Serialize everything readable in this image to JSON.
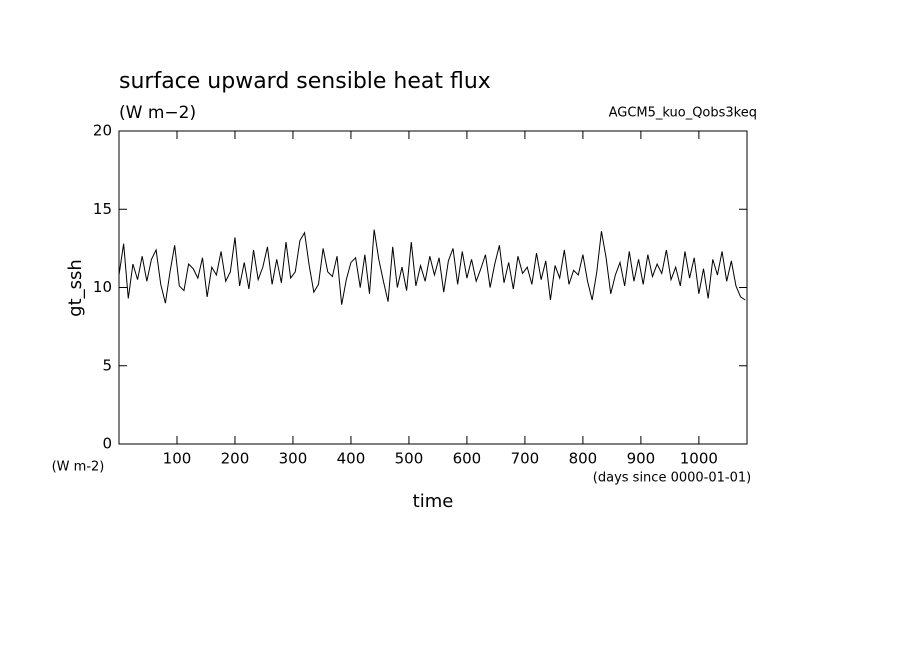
{
  "chart_data": {
    "type": "line",
    "title": "surface upward sensible heat flux",
    "subtitle": "(W m−2)",
    "annotation": "AGCM5_kuo_Qobs3keq",
    "ylabel": "gt_ssh",
    "yunits": "(W m-2)",
    "xlabel": "time",
    "xunits": "(days since 0000-01-01)",
    "xlim": [
      0,
      1083
    ],
    "ylim": [
      0,
      20
    ],
    "xticks": [
      100,
      200,
      300,
      400,
      500,
      600,
      700,
      800,
      900,
      1000
    ],
    "yticks": [
      0,
      5,
      10,
      15,
      20
    ],
    "color": "#000000",
    "x": [
      0,
      8,
      16,
      24,
      32,
      40,
      48,
      56,
      64,
      72,
      80,
      88,
      96,
      104,
      112,
      120,
      128,
      136,
      144,
      152,
      160,
      168,
      176,
      184,
      192,
      200,
      208,
      216,
      224,
      232,
      240,
      248,
      256,
      264,
      272,
      280,
      288,
      296,
      304,
      312,
      320,
      328,
      336,
      344,
      352,
      360,
      368,
      376,
      384,
      392,
      400,
      408,
      416,
      424,
      432,
      440,
      448,
      456,
      464,
      472,
      480,
      488,
      496,
      504,
      512,
      520,
      528,
      536,
      544,
      552,
      560,
      568,
      576,
      584,
      592,
      600,
      608,
      616,
      624,
      632,
      640,
      648,
      656,
      664,
      672,
      680,
      688,
      696,
      704,
      712,
      720,
      728,
      736,
      744,
      752,
      760,
      768,
      776,
      784,
      792,
      800,
      808,
      816,
      824,
      832,
      840,
      848,
      856,
      864,
      872,
      880,
      888,
      896,
      904,
      912,
      920,
      928,
      936,
      944,
      952,
      960,
      968,
      976,
      984,
      992,
      1000,
      1008,
      1016,
      1024,
      1032,
      1040,
      1048,
      1056,
      1064,
      1072,
      1080
    ],
    "values": [
      10.8,
      12.8,
      9.3,
      11.5,
      10.5,
      12.0,
      10.4,
      11.8,
      12.4,
      10.2,
      9.0,
      11.0,
      12.7,
      10.1,
      9.8,
      11.5,
      11.2,
      10.6,
      11.9,
      9.4,
      11.3,
      10.8,
      12.3,
      10.4,
      11.0,
      13.2,
      10.1,
      11.6,
      9.9,
      12.4,
      10.5,
      11.3,
      12.6,
      10.2,
      11.8,
      10.3,
      12.9,
      10.6,
      11.0,
      13.0,
      13.5,
      11.4,
      9.7,
      10.2,
      12.5,
      11.0,
      10.7,
      12.0,
      8.9,
      10.5,
      11.6,
      11.9,
      10.0,
      12.1,
      9.6,
      13.7,
      11.8,
      10.4,
      9.1,
      12.6,
      10.0,
      11.3,
      9.8,
      12.9,
      10.1,
      11.4,
      10.4,
      12.0,
      10.8,
      11.9,
      9.7,
      11.7,
      12.5,
      10.2,
      12.3,
      10.6,
      11.8,
      10.4,
      11.2,
      12.1,
      10.0,
      11.5,
      12.7,
      10.3,
      11.6,
      9.9,
      12.0,
      10.9,
      11.3,
      10.2,
      12.2,
      10.5,
      11.7,
      9.2,
      11.4,
      10.6,
      12.4,
      10.2,
      11.1,
      10.8,
      12.1,
      10.4,
      9.2,
      11.0,
      13.6,
      11.9,
      9.6,
      10.8,
      11.6,
      10.1,
      12.3,
      10.4,
      11.8,
      10.2,
      12.1,
      10.7,
      11.5,
      10.9,
      12.4,
      10.5,
      11.3,
      10.1,
      12.3,
      10.6,
      11.9,
      9.6,
      11.2,
      9.3,
      11.8,
      10.8,
      12.3,
      10.4,
      11.7,
      10.1,
      9.4,
      9.2
    ]
  }
}
